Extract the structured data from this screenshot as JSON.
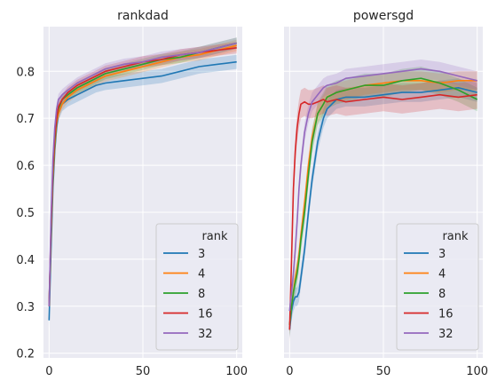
{
  "chart_data": [
    {
      "type": "line",
      "title": "rankdad",
      "xlabel": "",
      "ylabel": "",
      "xlim": [
        -3,
        103
      ],
      "ylim": [
        0.19,
        0.895
      ],
      "xticks": [
        0,
        50,
        100
      ],
      "yticks": [
        0.2,
        0.3,
        0.4,
        0.5,
        0.6,
        0.7,
        0.8
      ],
      "grid": true,
      "legend": {
        "title": "rank",
        "placement": "lower-right"
      },
      "bands": true,
      "x": [
        0,
        1,
        2,
        3,
        4,
        5,
        7,
        10,
        15,
        20,
        25,
        30,
        40,
        50,
        60,
        70,
        80,
        90,
        100
      ],
      "series": [
        {
          "name": "3",
          "color": "#1f77b4",
          "values": [
            0.27,
            0.42,
            0.55,
            0.63,
            0.68,
            0.71,
            0.73,
            0.74,
            0.75,
            0.76,
            0.77,
            0.775,
            0.78,
            0.785,
            0.79,
            0.8,
            0.81,
            0.815,
            0.82
          ],
          "band": 0.015
        },
        {
          "name": "4",
          "color": "#ff7f0e",
          "values": [
            0.3,
            0.45,
            0.57,
            0.64,
            0.69,
            0.71,
            0.73,
            0.745,
            0.76,
            0.77,
            0.78,
            0.79,
            0.8,
            0.81,
            0.82,
            0.83,
            0.835,
            0.845,
            0.855
          ],
          "band": 0.012
        },
        {
          "name": "8",
          "color": "#2ca02c",
          "values": [
            0.3,
            0.46,
            0.58,
            0.65,
            0.7,
            0.72,
            0.74,
            0.75,
            0.765,
            0.775,
            0.785,
            0.795,
            0.805,
            0.815,
            0.825,
            0.83,
            0.84,
            0.85,
            0.86
          ],
          "band": 0.012
        },
        {
          "name": "16",
          "color": "#d62728",
          "values": [
            0.3,
            0.47,
            0.59,
            0.66,
            0.7,
            0.725,
            0.74,
            0.755,
            0.77,
            0.78,
            0.79,
            0.8,
            0.81,
            0.82,
            0.825,
            0.835,
            0.84,
            0.845,
            0.85
          ],
          "band": 0.012
        },
        {
          "name": "32",
          "color": "#9467bd",
          "values": [
            0.3,
            0.49,
            0.61,
            0.68,
            0.72,
            0.74,
            0.75,
            0.76,
            0.775,
            0.785,
            0.795,
            0.805,
            0.815,
            0.82,
            0.83,
            0.835,
            0.84,
            0.85,
            0.86
          ],
          "band": 0.012
        }
      ]
    },
    {
      "type": "line",
      "title": "powersgd",
      "xlabel": "",
      "ylabel": "",
      "xlim": [
        -3,
        103
      ],
      "ylim": [
        0.19,
        0.895
      ],
      "xticks": [
        0,
        50,
        100
      ],
      "yticks": [
        0.2,
        0.3,
        0.4,
        0.5,
        0.6,
        0.7,
        0.8
      ],
      "grid": true,
      "legend": {
        "title": "rank",
        "placement": "lower-right"
      },
      "bands": true,
      "x": [
        0,
        1,
        2,
        3,
        4,
        5,
        6,
        8,
        10,
        12,
        15,
        18,
        20,
        25,
        30,
        40,
        50,
        60,
        70,
        80,
        90,
        100
      ],
      "series": [
        {
          "name": "3",
          "color": "#1f77b4",
          "values": [
            0.25,
            0.29,
            0.31,
            0.32,
            0.32,
            0.33,
            0.36,
            0.42,
            0.5,
            0.57,
            0.65,
            0.7,
            0.72,
            0.74,
            0.745,
            0.745,
            0.75,
            0.755,
            0.755,
            0.76,
            0.765,
            0.755
          ],
          "band": 0.02
        },
        {
          "name": "4",
          "color": "#ff7f0e",
          "values": [
            0.26,
            0.3,
            0.33,
            0.36,
            0.38,
            0.41,
            0.45,
            0.52,
            0.6,
            0.66,
            0.71,
            0.73,
            0.745,
            0.755,
            0.76,
            0.77,
            0.775,
            0.78,
            0.78,
            0.775,
            0.78,
            0.78
          ],
          "band": 0.02
        },
        {
          "name": "8",
          "color": "#2ca02c",
          "values": [
            0.26,
            0.3,
            0.33,
            0.35,
            0.37,
            0.4,
            0.44,
            0.5,
            0.58,
            0.65,
            0.71,
            0.73,
            0.745,
            0.755,
            0.76,
            0.77,
            0.77,
            0.78,
            0.785,
            0.775,
            0.76,
            0.74
          ],
          "band": 0.025
        },
        {
          "name": "16",
          "color": "#d62728",
          "values": [
            0.25,
            0.4,
            0.55,
            0.63,
            0.68,
            0.71,
            0.73,
            0.735,
            0.73,
            0.73,
            0.735,
            0.74,
            0.735,
            0.74,
            0.735,
            0.74,
            0.745,
            0.74,
            0.745,
            0.75,
            0.745,
            0.75
          ],
          "band": 0.03
        },
        {
          "name": "32",
          "color": "#9467bd",
          "values": [
            0.29,
            0.33,
            0.37,
            0.42,
            0.48,
            0.55,
            0.6,
            0.67,
            0.71,
            0.735,
            0.75,
            0.765,
            0.77,
            0.775,
            0.785,
            0.79,
            0.795,
            0.8,
            0.805,
            0.8,
            0.79,
            0.78
          ],
          "band": 0.02
        }
      ]
    }
  ]
}
